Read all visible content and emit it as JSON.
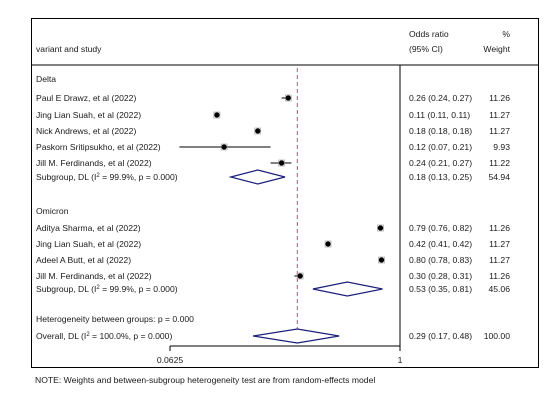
{
  "chart_data": {
    "type": "forest",
    "header": {
      "study_col": "variant and study",
      "or_col_line1": "Odds ratio",
      "or_col_line2": "(95% CI)",
      "weight_col_line1": "%",
      "weight_col_line2": "Weight"
    },
    "x_scale": "log",
    "x_ticks": [
      {
        "value": 0.0625,
        "label": "0.0625"
      },
      {
        "value": 1,
        "label": "1"
      }
    ],
    "overall_effect": 0.29,
    "groups": [
      {
        "name": "Delta",
        "studies": [
          {
            "label": "Paul E Drawz, et al (2022)",
            "or": 0.26,
            "lo": 0.24,
            "hi": 0.27,
            "ci_text": "0.26 (0.24, 0.27)",
            "weight": "11.26"
          },
          {
            "label": "Jing Lian Suah, et al (2022)",
            "or": 0.11,
            "lo": 0.11,
            "hi": 0.11,
            "ci_text": "0.11 (0.11, 0.11)",
            "weight": "11.27"
          },
          {
            "label": "Nick Andrews, et al (2022)",
            "or": 0.18,
            "lo": 0.18,
            "hi": 0.18,
            "ci_text": "0.18 (0.18, 0.18)",
            "weight": "11.27"
          },
          {
            "label": "Paskorn Sritipsukho, et al (2022)",
            "or": 0.12,
            "lo": 0.07,
            "hi": 0.21,
            "ci_text": "0.12 (0.07, 0.21)",
            "weight": "9.93"
          },
          {
            "label": "Jill M. Ferdinands, et al (2022)",
            "or": 0.24,
            "lo": 0.21,
            "hi": 0.27,
            "ci_text": "0.24 (0.21, 0.27)",
            "weight": "11.22"
          }
        ],
        "subgroup": {
          "label_prefix": "Subgroup, DL (I",
          "sup": "2",
          "label_suffix": " = 99.9%, p = 0.000)",
          "or": 0.18,
          "lo": 0.13,
          "hi": 0.25,
          "ci_text": "0.18 (0.13, 0.25)",
          "weight": "54.94"
        }
      },
      {
        "name": "Omicron",
        "studies": [
          {
            "label": "Aditya Sharma, et al (2022)",
            "or": 0.79,
            "lo": 0.76,
            "hi": 0.82,
            "ci_text": "0.79 (0.76, 0.82)",
            "weight": "11.26"
          },
          {
            "label": "Jing Lian Suah, et al (2022)",
            "or": 0.42,
            "lo": 0.41,
            "hi": 0.42,
            "ci_text": "0.42 (0.41, 0.42)",
            "weight": "11.27"
          },
          {
            "label": "Adeel A Butt, et al (2022)",
            "or": 0.8,
            "lo": 0.78,
            "hi": 0.83,
            "ci_text": "0.80 (0.78, 0.83)",
            "weight": "11.27"
          },
          {
            "label": "Jill M. Ferdinands, et al (2022)",
            "or": 0.3,
            "lo": 0.28,
            "hi": 0.31,
            "ci_text": "0.30 (0.28, 0.31)",
            "weight": "11.26"
          }
        ],
        "subgroup": {
          "label_prefix": "Subgroup, DL (I",
          "sup": "2",
          "label_suffix": " = 99.9%, p = 0.000)",
          "or": 0.53,
          "lo": 0.35,
          "hi": 0.81,
          "ci_text": "0.53 (0.35, 0.81)",
          "weight": "45.06"
        }
      }
    ],
    "heterogeneity_text": "Heterogeneity between groups: p = 0.000",
    "overall": {
      "label_prefix": "Overall, DL (I",
      "sup": "2",
      "label_suffix": " = 100.0%, p = 0.000)",
      "or": 0.29,
      "lo": 0.17,
      "hi": 0.48,
      "ci_text": "0.29 (0.17, 0.48)",
      "weight": "100.00"
    },
    "note": "NOTE: Weights and between-subgroup heterogeneity test are from random-effects model",
    "colors": {
      "subgroup_diamond": "#1b1f7a",
      "ref_line": "#c8527a",
      "frame": "#000000",
      "marker": "#000000"
    }
  }
}
